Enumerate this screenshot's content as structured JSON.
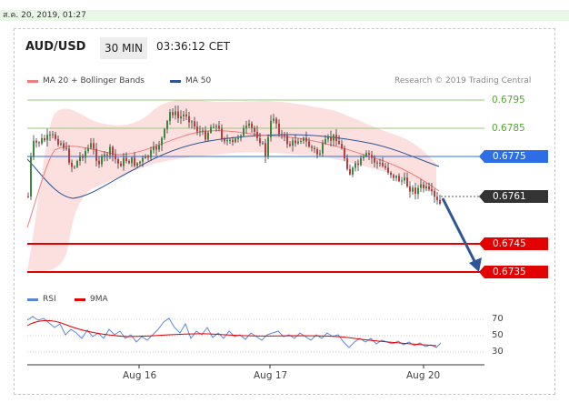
{
  "timestamp": "ส.ค. 20, 2019, 01:27",
  "header": {
    "pair": "AUD/USD",
    "timeframe": "30 MIN",
    "time": "03:36:12 CET"
  },
  "legend": {
    "ma20": "MA 20 + Bollinger Bands",
    "ma50": "MA 50",
    "research": "Research © 2019 Trading Central"
  },
  "colors": {
    "ma20": "#ef7d7a",
    "ma50": "#2f5597",
    "band": "#fcd9d9",
    "bull": "#3b8a3b",
    "bear": "#c43a3a",
    "green_level": "#9bc97c",
    "blue_level": "#2d6ee6",
    "red_level": "#e30000",
    "arrow": "#2f5597"
  },
  "levels": {
    "r2": "0.6795",
    "r1": "0.6785",
    "pivot": "0.6775",
    "current": "0.6761",
    "s1": "0.6745",
    "s2": "0.6735"
  },
  "rsi": {
    "label": "RSI",
    "ma_label": "9MA",
    "ticks": [
      "70",
      "50",
      "30"
    ]
  },
  "x_labels": [
    "Aug 16",
    "Aug 17",
    "Aug 20"
  ]
}
